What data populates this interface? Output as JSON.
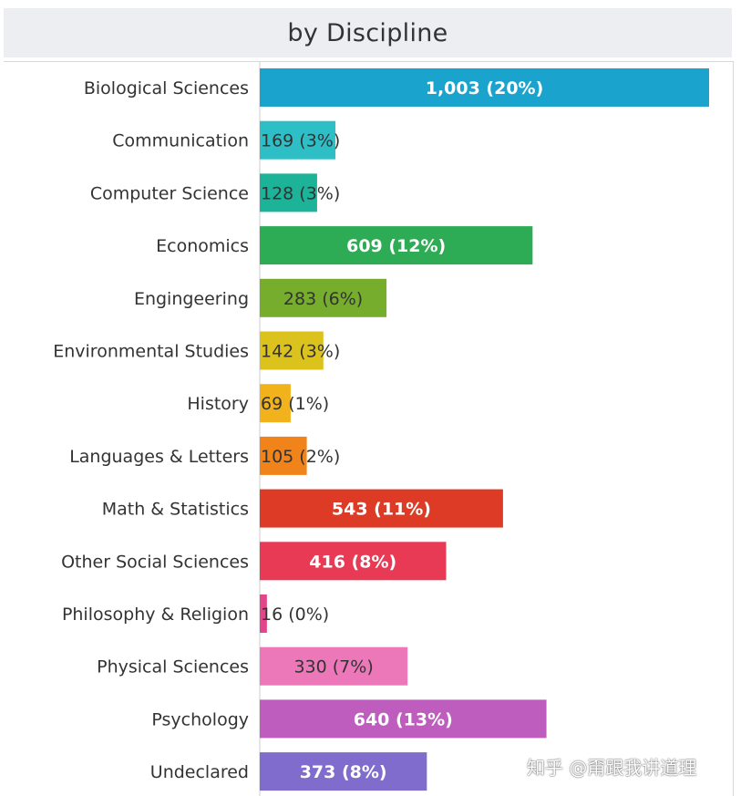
{
  "title": "by Discipline",
  "watermark": "知乎 @甭跟我讲道理",
  "chart_data": {
    "type": "bar",
    "orientation": "horizontal",
    "title": "by Discipline",
    "xlabel": "",
    "ylabel": "",
    "xlim": [
      0,
      1003
    ],
    "grid": false,
    "categories": [
      "Biological Sciences",
      "Communication",
      "Computer Science",
      "Economics",
      "Engingeering",
      "Environmental Studies",
      "History",
      "Languages & Letters",
      "Math & Statistics",
      "Other Social Sciences",
      "Philosophy & Religion",
      "Physical Sciences",
      "Psychology",
      "Undeclared"
    ],
    "values": [
      1003,
      169,
      128,
      609,
      283,
      142,
      69,
      105,
      543,
      416,
      16,
      330,
      640,
      373
    ],
    "data_labels": [
      "1,003 (20%)",
      "169 (3%)",
      "128 (3%)",
      "609 (12%)",
      "283 (6%)",
      "142 (3%)",
      "69 (1%)",
      "105 (2%)",
      "543 (11%)",
      "416 (8%)",
      "16 (0%)",
      "330 (7%)",
      "640 (13%)",
      "373 (8%)"
    ],
    "colors": [
      "#1aa3cc",
      "#2ebfc6",
      "#1db399",
      "#2eac55",
      "#77ad2d",
      "#dcc21d",
      "#f2b21b",
      "#f0841a",
      "#dd3b25",
      "#e83a55",
      "#e2458a",
      "#ec77b9",
      "#bf5dbf",
      "#7f6ccc"
    ],
    "label_styles": [
      "inside-bold",
      "outside",
      "outside",
      "inside-bold",
      "inside-dark",
      "outside",
      "outside",
      "outside",
      "inside-bold",
      "inside-bold",
      "outside",
      "inside-dark",
      "inside-bold",
      "inside-bold"
    ]
  }
}
